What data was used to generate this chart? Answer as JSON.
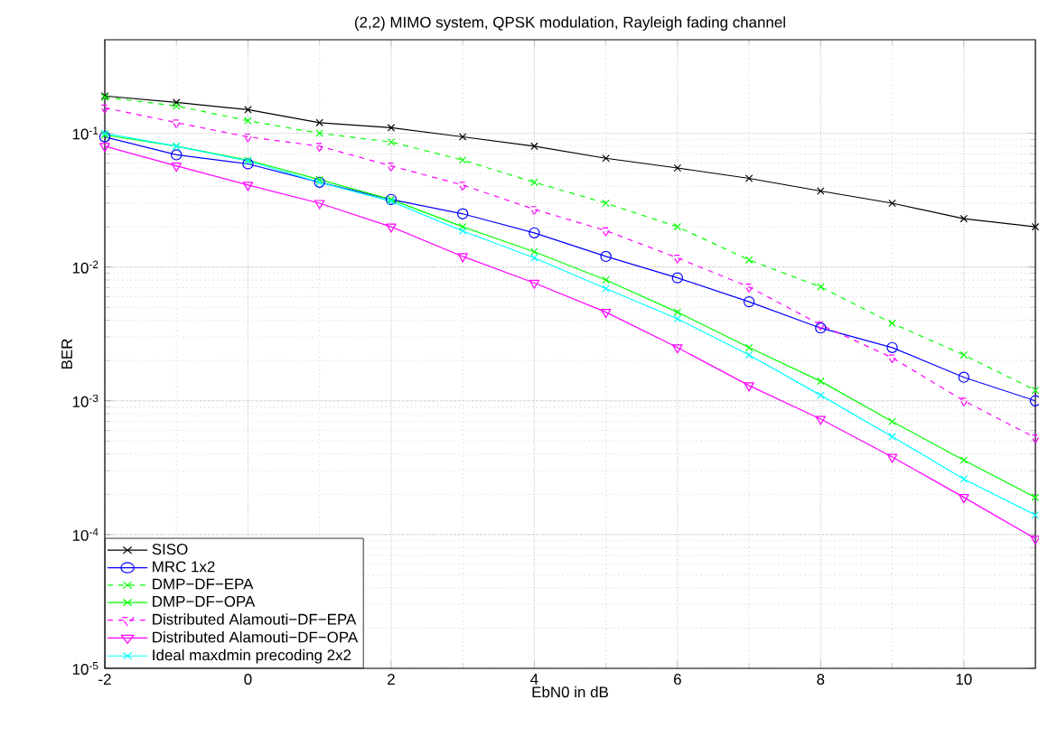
{
  "chart_data": {
    "type": "line",
    "title": "(2,2) MIMO system, QPSK modulation, Rayleigh fading channel",
    "xlabel": "EbN0 in dB",
    "ylabel": "BER",
    "x": [
      -2,
      -1,
      0,
      1,
      2,
      3,
      4,
      5,
      6,
      7,
      8,
      9,
      10,
      11
    ],
    "series": [
      {
        "name": "SISO",
        "color": "#000000",
        "marker": "cross",
        "line_style": "solid",
        "values": [
          0.19,
          0.17,
          0.15,
          0.12,
          0.11,
          0.094,
          0.08,
          0.065,
          0.055,
          0.046,
          0.037,
          0.03,
          0.023,
          0.02
        ]
      },
      {
        "name": "MRC 1x2",
        "color": "#0000ff",
        "marker": "circle",
        "line_style": "solid",
        "values": [
          0.094,
          0.069,
          0.059,
          0.043,
          0.032,
          0.025,
          0.018,
          0.012,
          0.0083,
          0.0055,
          0.0035,
          0.0025,
          0.0015,
          0.001
        ]
      },
      {
        "name": "DMP−DF−EPA",
        "color": "#00ff00",
        "marker": "cross",
        "line_style": "dashed",
        "values": [
          0.186,
          0.16,
          0.124,
          0.1,
          0.086,
          0.063,
          0.043,
          0.03,
          0.02,
          0.0113,
          0.0071,
          0.0038,
          0.0022,
          0.0012
        ]
      },
      {
        "name": "DMP−DF−OPA",
        "color": "#00ff00",
        "marker": "cross",
        "line_style": "solid",
        "values": [
          0.097,
          0.08,
          0.063,
          0.045,
          0.032,
          0.02,
          0.013,
          0.008,
          0.0046,
          0.0025,
          0.0014,
          0.0007,
          0.00036,
          0.00019
        ]
      },
      {
        "name": "Distributed Alamouti−DF−EPA",
        "color": "#ff00ff",
        "marker": "triangle",
        "line_style": "dashed",
        "values": [
          0.155,
          0.12,
          0.094,
          0.08,
          0.057,
          0.041,
          0.027,
          0.0187,
          0.0117,
          0.0071,
          0.0037,
          0.0021,
          0.001,
          0.00053
        ]
      },
      {
        "name": "Distributed Alamouti−DF−OPA",
        "color": "#ff00ff",
        "marker": "triangle",
        "line_style": "solid",
        "values": [
          0.08,
          0.057,
          0.041,
          0.03,
          0.02,
          0.012,
          0.0076,
          0.0046,
          0.0025,
          0.0013,
          0.00073,
          0.00038,
          0.00019,
          9.3e-05
        ]
      },
      {
        "name": "Ideal maxdmin precoding 2x2",
        "color": "#00ffff",
        "marker": "cross",
        "line_style": "solid",
        "values": [
          0.1,
          0.08,
          0.062,
          0.043,
          0.031,
          0.0186,
          0.0117,
          0.0069,
          0.0041,
          0.0022,
          0.0011,
          0.00054,
          0.00026,
          0.00014
        ]
      }
    ],
    "xlim": [
      -2,
      11
    ],
    "ylim": [
      1e-05,
      0.5
    ],
    "xticks": [
      -2,
      0,
      2,
      4,
      6,
      8,
      10
    ],
    "yticks": [
      {
        "value": 1e-05,
        "label": "10$^{-5}$"
      },
      {
        "value": 0.0001,
        "label": "10$^{-4}$"
      },
      {
        "value": 0.001,
        "label": "10$^{-3}$"
      },
      {
        "value": 0.01,
        "label": "10$^{-2}$"
      },
      {
        "value": 0.1,
        "label": "10$^{-1}$"
      }
    ],
    "log": "y",
    "grid": true,
    "legend": "bottom left"
  }
}
